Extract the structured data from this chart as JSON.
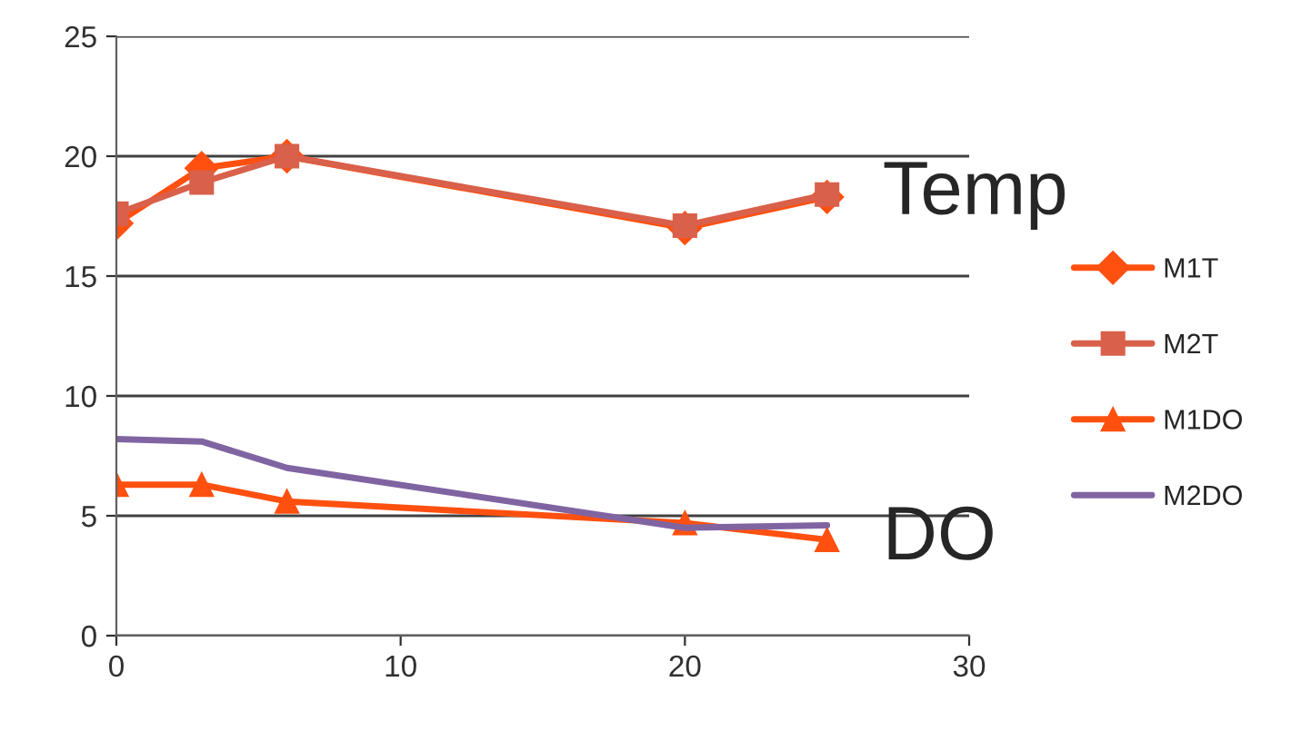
{
  "chart_data": {
    "type": "line",
    "x": [
      0,
      3,
      6,
      20,
      25
    ],
    "series": [
      {
        "name": "M1T",
        "color": "#ff5010",
        "marker": "diamond",
        "values": [
          17.2,
          19.5,
          20.0,
          17.0,
          18.3
        ]
      },
      {
        "name": "M2T",
        "color": "#d9604a",
        "marker": "square",
        "values": [
          17.6,
          18.9,
          20.0,
          17.1,
          18.4
        ]
      },
      {
        "name": "M1DO",
        "color": "#ff5010",
        "marker": "triangle",
        "values": [
          6.3,
          6.3,
          5.6,
          4.7,
          4.0
        ]
      },
      {
        "name": "M2DO",
        "color": "#8064a2",
        "marker": "none",
        "values": [
          8.2,
          8.1,
          7.0,
          4.5,
          4.6
        ]
      }
    ],
    "xlim": [
      0,
      30
    ],
    "xticks": [
      0,
      10,
      20,
      30
    ],
    "ylim": [
      0,
      25
    ],
    "yticks": [
      0,
      5,
      10,
      15,
      20,
      25
    ],
    "grid": "y",
    "legend": "right",
    "annotations": [
      {
        "text": "Temp",
        "x": 25,
        "y": 18.4
      },
      {
        "text": "DO",
        "x": 25,
        "y": 4.0
      }
    ]
  }
}
